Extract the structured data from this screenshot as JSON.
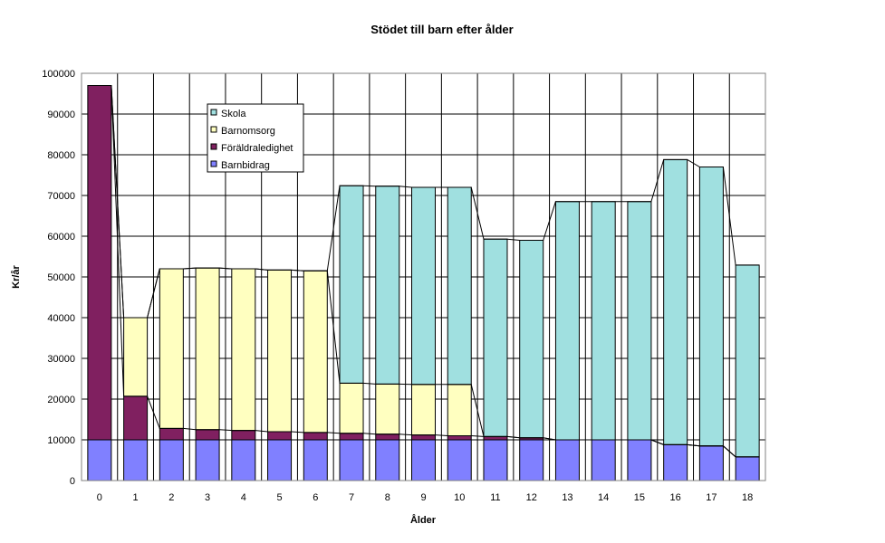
{
  "chart_data": {
    "type": "bar",
    "stacked": true,
    "title": "Stödet till barn efter ålder",
    "xlabel": "Ålder",
    "ylabel": "Kr/år",
    "ylim": [
      0,
      100000
    ],
    "yticks": [
      0,
      10000,
      20000,
      30000,
      40000,
      50000,
      60000,
      70000,
      80000,
      90000,
      100000
    ],
    "grid": true,
    "legend_position": "top-left",
    "categories": [
      "0",
      "1",
      "2",
      "3",
      "4",
      "5",
      "6",
      "7",
      "8",
      "9",
      "10",
      "11",
      "12",
      "13",
      "14",
      "15",
      "16",
      "17",
      "18"
    ],
    "series": [
      {
        "name": "Barnbidrag",
        "color": "#8080ff",
        "values": [
          10000,
          10000,
          10000,
          10000,
          10000,
          10000,
          10000,
          10000,
          10000,
          10000,
          10000,
          10000,
          10000,
          10000,
          10000,
          10000,
          8800,
          8500,
          5800
        ]
      },
      {
        "name": "Föräldraledighet",
        "color": "#802060",
        "values": [
          87000,
          10700,
          2800,
          2500,
          2300,
          2000,
          1800,
          1600,
          1400,
          1200,
          1000,
          800,
          500,
          0,
          0,
          0,
          0,
          0,
          0
        ]
      },
      {
        "name": "Barnomsorg",
        "color": "#ffffc0",
        "values": [
          0,
          19300,
          39200,
          39700,
          39700,
          39700,
          39700,
          12300,
          12300,
          12400,
          12600,
          0,
          0,
          0,
          0,
          0,
          0,
          0,
          0
        ]
      },
      {
        "name": "Skola",
        "color": "#a0e0e0",
        "values": [
          0,
          0,
          0,
          0,
          0,
          0,
          0,
          48500,
          48600,
          48400,
          48400,
          48500,
          48500,
          58500,
          58500,
          58500,
          70000,
          68500,
          47100
        ]
      }
    ]
  }
}
